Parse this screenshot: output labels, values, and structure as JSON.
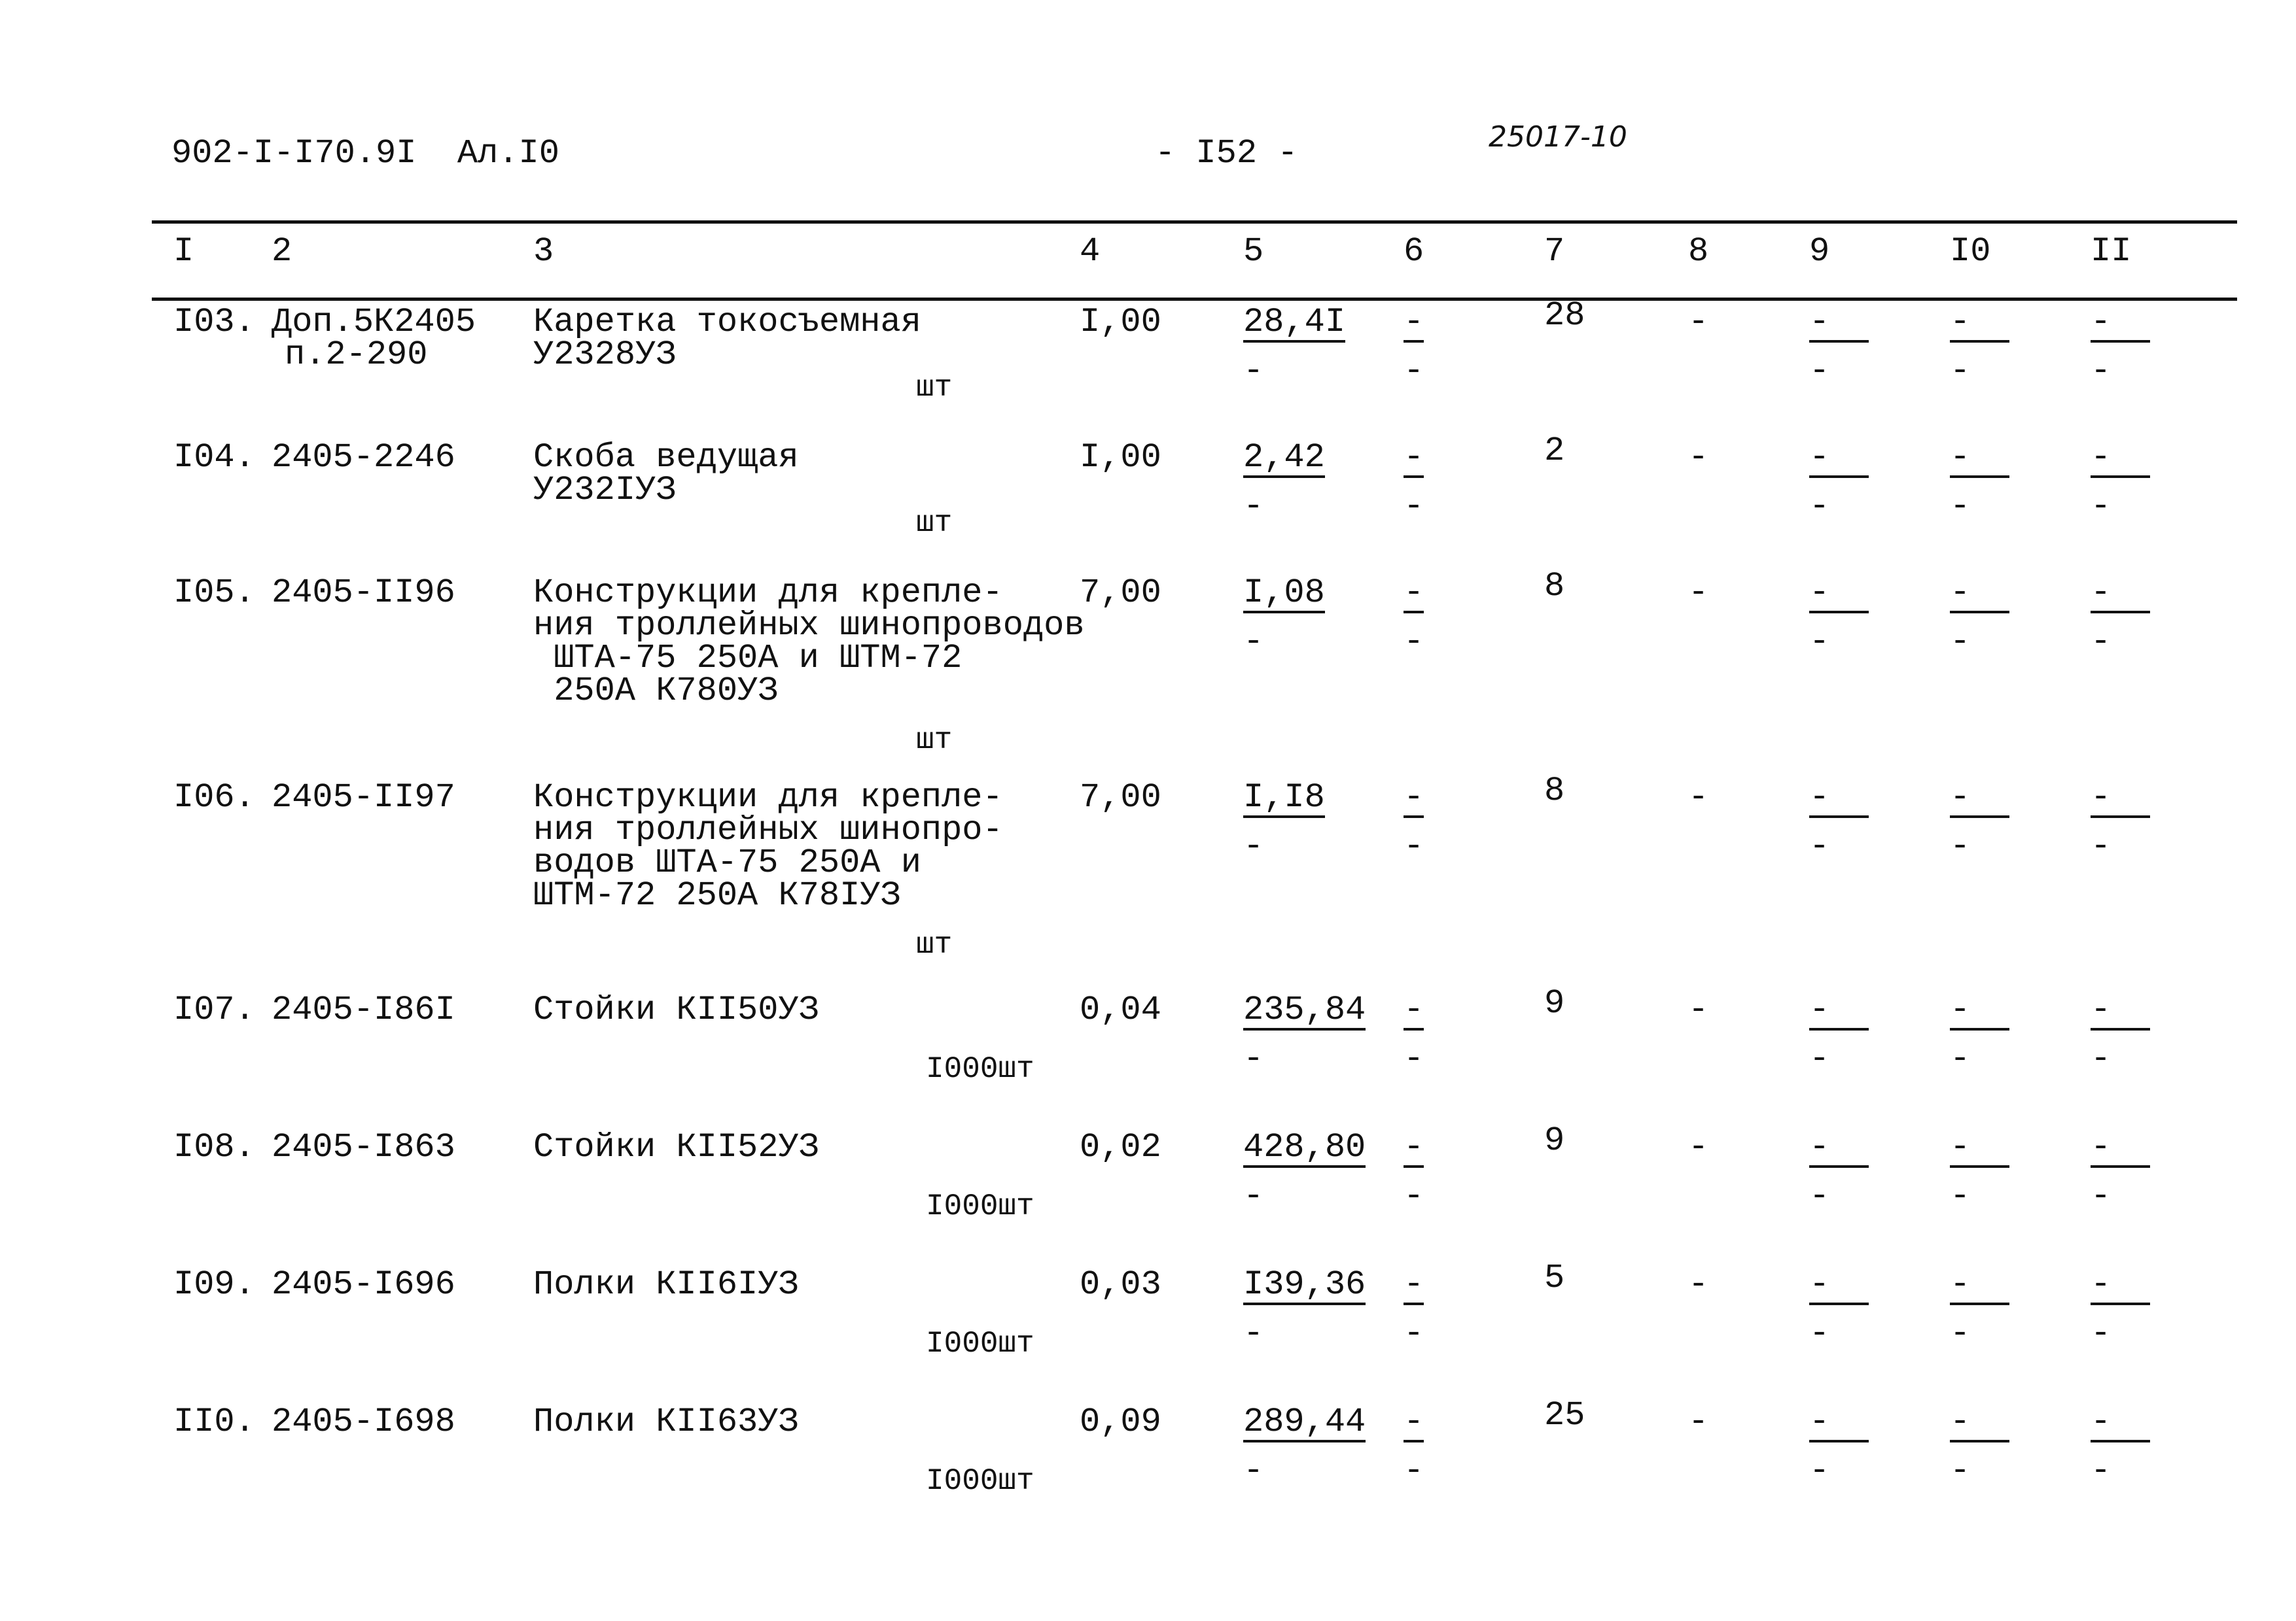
{
  "header": {
    "doc_code": "902-I-I70.9I  Ал.I0",
    "page_number": "- I52 -",
    "handwritten_number": "25017-10"
  },
  "columns": [
    "I",
    "2",
    "3",
    "4",
    "5",
    "6",
    "7",
    "8",
    "9",
    "I0",
    "II"
  ],
  "rows": [
    {
      "num": "I03.",
      "code": [
        "Доп.5К2405",
        "п.2-290"
      ],
      "name": [
        "Каретка токосъемная",
        "У2328УЗ"
      ],
      "unit": "шт",
      "qty": "I,00",
      "price": "28,4I",
      "c6": "-",
      "c7": "28",
      "c8": "-",
      "c9": "-",
      "c10": "-",
      "c11": "-"
    },
    {
      "num": "I04.",
      "code": [
        "2405-2246"
      ],
      "name": [
        "Скоба ведущая",
        "У232IУЗ"
      ],
      "unit": "шт",
      "qty": "I,00",
      "price": "2,42",
      "c6": "-",
      "c7": "2",
      "c8": "-",
      "c9": "-",
      "c10": "-",
      "c11": "-"
    },
    {
      "num": "I05.",
      "code": [
        "2405-II96"
      ],
      "name": [
        "Конструкции для крепле-",
        "ния троллейных шинопроводов",
        " ШТА-75 250А и ШТМ-72",
        " 250А К780УЗ"
      ],
      "unit": "шт",
      "qty": "7,00",
      "price": "I,08",
      "c6": "-",
      "c7": "8",
      "c8": "-",
      "c9": "-",
      "c10": "-",
      "c11": "-"
    },
    {
      "num": "I06.",
      "code": [
        "2405-II97"
      ],
      "name": [
        "Конструкции для крепле-",
        "ния троллейных шинопро-",
        "водов ШТА-75 250А и",
        "ШТМ-72 250А К78IУЗ"
      ],
      "unit": "шт",
      "qty": "7,00",
      "price": "I,I8",
      "c6": "-",
      "c7": "8",
      "c8": "-",
      "c9": "-",
      "c10": "-",
      "c11": "-"
    },
    {
      "num": "I07.",
      "code": [
        "2405-I86I"
      ],
      "name": [
        "Стойки КII50УЗ"
      ],
      "unit": "I000шт",
      "qty": "0,04",
      "price": "235,84",
      "c6": "-",
      "c7": "9",
      "c8": "-",
      "c9": "-",
      "c10": "-",
      "c11": "-"
    },
    {
      "num": "I08.",
      "code": [
        "2405-I863"
      ],
      "name": [
        "Стойки КII52УЗ"
      ],
      "unit": "I000шт",
      "qty": "0,02",
      "price": "428,80",
      "c6": "-",
      "c7": "9",
      "c8": "-",
      "c9": "-",
      "c10": "-",
      "c11": "-"
    },
    {
      "num": "I09.",
      "code": [
        "2405-I696"
      ],
      "name": [
        "Полки КII6IУЗ"
      ],
      "unit": "I000шт",
      "qty": "0,03",
      "price": "I39,36",
      "c6": "-",
      "c7": "5",
      "c8": "-",
      "c9": "-",
      "c10": "-",
      "c11": "-"
    },
    {
      "num": "II0.",
      "code": [
        "2405-I698"
      ],
      "name": [
        "Полки КII63УЗ"
      ],
      "unit": "I000шт",
      "qty": "0,09",
      "price": "289,44",
      "c6": "-",
      "c7": "25",
      "c8": "-",
      "c9": "-",
      "c10": "-",
      "c11": "-"
    }
  ],
  "sub_dash": "-"
}
